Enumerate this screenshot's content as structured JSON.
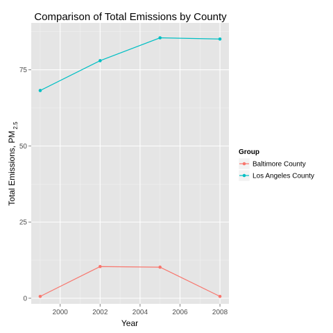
{
  "chart_data": {
    "type": "line",
    "title": "Comparison of Total Emissions by County",
    "xlabel": "Year",
    "ylabel": "Total Emissions, PM",
    "ylabel_subscript": "2.5",
    "x": [
      1999,
      2002,
      2005,
      2008
    ],
    "xticks": [
      2000,
      2002,
      2004,
      2006,
      2008
    ],
    "yticks": [
      0,
      25,
      50,
      75
    ],
    "xlim": [
      1998.55,
      2008.45
    ],
    "ylim": [
      -1.85,
      90.4
    ],
    "grid": true,
    "legend": {
      "title": "Group",
      "position": "right"
    },
    "series": [
      {
        "name": "Baltimore County",
        "color": "#F8766D",
        "values": [
          0.6,
          10.4,
          10.2,
          0.6
        ]
      },
      {
        "name": "Los Angeles County",
        "color": "#00BFC4",
        "values": [
          68.2,
          78.0,
          85.5,
          85.1
        ]
      }
    ]
  }
}
